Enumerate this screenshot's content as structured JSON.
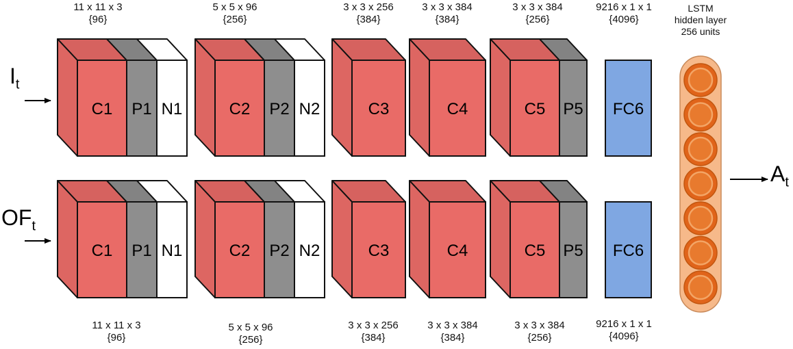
{
  "colors": {
    "conv": "#e96b67",
    "pool": "#8e8e8e",
    "norm": "#ffffff",
    "fc": "#7fa7e2",
    "lstm_bg": "#f6b98a",
    "lstm_unit": "#e0641a",
    "lstm_unit_light": "#f3a566",
    "stroke": "#111111"
  },
  "streams": [
    {
      "input_main": "I",
      "input_sub": "t",
      "layers": [
        "C1",
        "P1",
        "N1",
        "C2",
        "P2",
        "N2",
        "C3",
        "C4",
        "C5",
        "P5",
        "FC6"
      ]
    },
    {
      "input_main": "OF",
      "input_sub": "t",
      "layers": [
        "C1",
        "P1",
        "N1",
        "C2",
        "P2",
        "N2",
        "C3",
        "C4",
        "C5",
        "P5",
        "FC6"
      ]
    }
  ],
  "top_dims": [
    {
      "line1": "11 x 11 x 3",
      "line2": "{96}"
    },
    {
      "line1": "5 x 5 x 96",
      "line2": "{256}"
    },
    {
      "line1": "3 x 3 x 256",
      "line2": "{384}"
    },
    {
      "line1": "3 x 3 x 384",
      "line2": "{384}"
    },
    {
      "line1": "3 x 3 x 384",
      "line2": "{256}"
    },
    {
      "line1": "9216 x 1 x 1",
      "line2": "{4096}"
    }
  ],
  "bottom_dims": [
    {
      "line1": "11 x 11 x 3",
      "line2": "{96}"
    },
    {
      "line1": "5 x 5 x 96",
      "line2": "{256}"
    },
    {
      "line1": "3 x 3 x 256",
      "line2": "{384}"
    },
    {
      "line1": "3 x 3 x 384",
      "line2": "{384}"
    },
    {
      "line1": "3 x 3 x 384",
      "line2": "{256}"
    },
    {
      "line1": "9216 x 1 x 1",
      "line2": "{4096}"
    }
  ],
  "lstm": {
    "line1": "LSTM",
    "line2": "hidden layer",
    "line3": "256 units",
    "unit_count": 7
  },
  "output": {
    "main": "A",
    "sub": "t"
  }
}
